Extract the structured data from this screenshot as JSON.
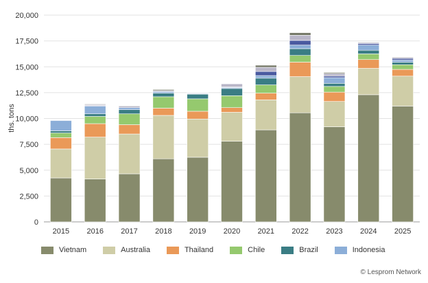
{
  "chart_data": {
    "type": "bar",
    "stacked": true,
    "categories": [
      "2015",
      "2016",
      "2017",
      "2018",
      "2019",
      "2020",
      "2021",
      "2022",
      "2023",
      "2024",
      "2025"
    ],
    "ylabel": "ths. tons",
    "ylim": [
      0,
      20000
    ],
    "yticks": [
      0,
      2500,
      5000,
      7500,
      10000,
      12500,
      15000,
      17500,
      20000
    ],
    "ytick_labels": [
      "0",
      "2,500",
      "5,000",
      "7,500",
      "10,000",
      "12,500",
      "15,000",
      "17,500",
      "20,000"
    ],
    "grid": true,
    "legend_position": "bottom",
    "series": [
      {
        "name": "Vietnam",
        "color": "#878b6c",
        "values": [
          4250,
          4150,
          4650,
          6100,
          6250,
          7800,
          8900,
          10550,
          9200,
          12300,
          11200
        ]
      },
      {
        "name": "Australia",
        "color": "#cfcda7",
        "values": [
          2800,
          4050,
          3850,
          4200,
          3700,
          2800,
          2900,
          3500,
          2450,
          2550,
          2900
        ]
      },
      {
        "name": "Thailand",
        "color": "#ea9958",
        "values": [
          1100,
          1300,
          900,
          700,
          750,
          450,
          650,
          1400,
          900,
          850,
          650
        ]
      },
      {
        "name": "Chile",
        "color": "#95c96e",
        "values": [
          450,
          700,
          1050,
          1100,
          1200,
          1150,
          800,
          650,
          550,
          550,
          450
        ]
      },
      {
        "name": "Brazil",
        "color": "#3a7d84",
        "values": [
          200,
          250,
          400,
          350,
          450,
          700,
          650,
          650,
          300,
          350,
          250
        ]
      },
      {
        "name": "Indonesia",
        "color": "#8caed8",
        "values": [
          1000,
          750,
          200,
          150,
          50,
          100,
          250,
          350,
          550,
          500,
          200
        ]
      },
      {
        "name": "",
        "color": "#4a5aa0",
        "values": [
          0,
          50,
          0,
          0,
          50,
          50,
          400,
          450,
          150,
          150,
          150
        ]
      },
      {
        "name": "",
        "color": "#b9b6c8",
        "values": [
          0,
          100,
          150,
          100,
          50,
          300,
          400,
          500,
          250,
          100,
          100
        ]
      },
      {
        "name": "",
        "color": "#767968",
        "values": [
          0,
          50,
          50,
          100,
          0,
          0,
          200,
          250,
          100,
          50,
          50
        ]
      }
    ]
  },
  "credit": "© Lesprom Network"
}
